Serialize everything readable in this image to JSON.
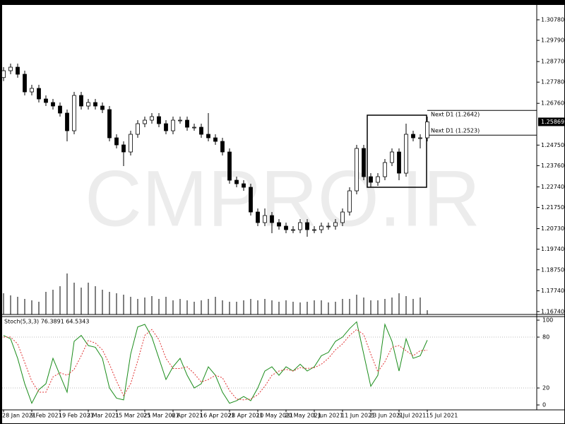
{
  "chart_data": {
    "type": "candlestick",
    "watermark": "CMPRO.IR",
    "categories": [
      "28 Jan 2021",
      null,
      null,
      null,
      "9 Feb 2021",
      null,
      null,
      null,
      "19 Feb 2021",
      null,
      null,
      null,
      "3 Mar 2021",
      null,
      null,
      null,
      "15 Mar 2021",
      null,
      null,
      null,
      "25 Mar 2021",
      null,
      null,
      null,
      "6 Apr 2021",
      null,
      null,
      null,
      "16 Apr 2021",
      null,
      null,
      null,
      "28 Apr 2021",
      null,
      null,
      null,
      "10 May 2021",
      null,
      null,
      null,
      "20 May 2021",
      null,
      null,
      null,
      "1 Jun 2021",
      null,
      null,
      null,
      "11 Jun 2021",
      null,
      null,
      null,
      "23 Jun 2021",
      null,
      null,
      null,
      "5 Jul 2021",
      null,
      null,
      null,
      "15 Jul 2021"
    ],
    "open": [
      1.28,
      1.2833,
      1.285,
      1.2816,
      1.2731,
      1.2748,
      1.2697,
      1.268,
      1.2663,
      1.2629,
      1.2544,
      1.2714,
      1.2663,
      1.268,
      1.2663,
      1.2646,
      1.251,
      1.2476,
      1.2442,
      1.2527,
      1.2578,
      1.2595,
      1.2612,
      1.2578,
      1.2544,
      1.2595,
      1.2595,
      1.2561,
      1.2561,
      1.2527,
      1.251,
      1.2493,
      1.2442,
      1.2306,
      1.2289,
      1.2272,
      1.2153,
      1.2102,
      1.2136,
      1.2102,
      1.2085,
      1.2068,
      1.2068,
      1.2102,
      1.2068,
      1.2068,
      1.2085,
      1.2085,
      1.2102,
      1.2153,
      1.2255,
      1.2459,
      1.2323,
      1.2296,
      1.2323,
      1.2391,
      1.2442,
      1.234,
      1.2527,
      1.251,
      1.251
    ],
    "high": [
      1.285,
      1.2867,
      1.2867,
      1.2833,
      1.2765,
      1.2765,
      1.2714,
      1.2697,
      1.268,
      1.2646,
      1.2731,
      1.2731,
      1.2697,
      1.2697,
      1.268,
      1.2663,
      1.2527,
      1.2493,
      1.2544,
      1.2595,
      1.2612,
      1.2629,
      1.2629,
      1.2595,
      1.2612,
      1.2612,
      1.2612,
      1.2578,
      1.2578,
      1.2629,
      1.2527,
      1.251,
      1.2459,
      1.2323,
      1.2306,
      1.2289,
      1.217,
      1.217,
      1.2153,
      1.2119,
      1.2102,
      1.2085,
      1.2119,
      1.2119,
      1.2085,
      1.2102,
      1.2102,
      1.2119,
      1.217,
      1.2272,
      1.2476,
      1.2476,
      1.234,
      1.234,
      1.2408,
      1.2459,
      1.2459,
      1.2578,
      1.2544,
      1.2527,
      1.2612
    ],
    "low": [
      1.2783,
      1.2816,
      1.2799,
      1.2714,
      1.2714,
      1.268,
      1.2663,
      1.2646,
      1.2612,
      1.2493,
      1.2527,
      1.2646,
      1.2646,
      1.2646,
      1.2629,
      1.2493,
      1.2459,
      1.2374,
      1.2425,
      1.251,
      1.2561,
      1.2578,
      1.2561,
      1.2527,
      1.2527,
      1.2578,
      1.2544,
      1.2544,
      1.251,
      1.2493,
      1.2476,
      1.2425,
      1.2289,
      1.2272,
      1.2255,
      1.2136,
      1.2085,
      1.2085,
      1.2051,
      1.2068,
      1.2051,
      1.2051,
      1.2051,
      1.2034,
      1.2051,
      1.2051,
      1.2068,
      1.2068,
      1.2085,
      1.2136,
      1.2238,
      1.2306,
      1.2272,
      1.2279,
      1.2306,
      1.2374,
      1.2306,
      1.2323,
      1.2493,
      1.2459,
      1.2493
    ],
    "close": [
      1.2833,
      1.285,
      1.2816,
      1.2731,
      1.2748,
      1.2697,
      1.268,
      1.2663,
      1.2629,
      1.2544,
      1.2714,
      1.2663,
      1.268,
      1.2663,
      1.2646,
      1.251,
      1.2476,
      1.2442,
      1.2527,
      1.2578,
      1.2595,
      1.2612,
      1.2578,
      1.2544,
      1.2595,
      1.2595,
      1.2561,
      1.2561,
      1.2527,
      1.251,
      1.2493,
      1.2442,
      1.2306,
      1.2289,
      1.2272,
      1.2153,
      1.2102,
      1.2136,
      1.2102,
      1.2085,
      1.2068,
      1.2068,
      1.2102,
      1.2068,
      1.2068,
      1.2085,
      1.2085,
      1.2102,
      1.2153,
      1.2255,
      1.2459,
      1.2323,
      1.2296,
      1.2323,
      1.2391,
      1.2442,
      1.234,
      1.2527,
      1.251,
      1.251,
      1.2587
    ],
    "up_color": "#ffffff",
    "down_color": "#000000",
    "ylim": [
      1.166,
      1.3146
    ],
    "yticks": [
      {
        "value": 1.3078,
        "label": "1.30780"
      },
      {
        "value": 1.2979,
        "label": "1.29790"
      },
      {
        "value": 1.2877,
        "label": "1.28770"
      },
      {
        "value": 1.2778,
        "label": "1.27780"
      },
      {
        "value": 1.2676,
        "label": "1.26760"
      },
      {
        "value": 1.2475,
        "label": "1.24750"
      },
      {
        "value": 1.2376,
        "label": "1.23760"
      },
      {
        "value": 1.2274,
        "label": "1.22740"
      },
      {
        "value": 1.2175,
        "label": "1.21750"
      },
      {
        "value": 1.2073,
        "label": "1.20730"
      },
      {
        "value": 1.1974,
        "label": "1.19740"
      },
      {
        "value": 1.1875,
        "label": "1.18750"
      },
      {
        "value": 1.1774,
        "label": "1.17740"
      },
      {
        "value": 1.1674,
        "label": "1.16740"
      }
    ],
    "last_price": 1.25869,
    "annotations": [
      {
        "label": "Next D1 (1.2642)",
        "value": 1.2642
      },
      {
        "label": "Next D1 (1.2523)",
        "value": 1.2523
      }
    ],
    "volume": {
      "color": "#000000",
      "values": [
        30,
        27,
        25,
        22,
        20,
        18,
        32,
        35,
        40,
        58,
        45,
        38,
        45,
        40,
        35,
        32,
        30,
        28,
        25,
        22,
        24,
        26,
        22,
        25,
        20,
        22,
        20,
        18,
        20,
        22,
        25,
        20,
        18,
        18,
        20,
        22,
        20,
        22,
        20,
        18,
        20,
        18,
        17,
        18,
        20,
        20,
        17,
        18,
        22,
        22,
        28,
        24,
        20,
        20,
        22,
        24,
        30,
        26,
        22,
        24,
        6
      ]
    },
    "stochastic": {
      "title": "Stoch(5,3,3) 76.3891 64.5343",
      "ylim": [
        -5.8,
        104.2
      ],
      "yticks": [
        100,
        80,
        20,
        0
      ],
      "levels": [
        80,
        20
      ],
      "series": [
        {
          "color": "#1a8c1a",
          "values": [
            82,
            78,
            55,
            25,
            2,
            18,
            25,
            55,
            35,
            15,
            75,
            82,
            70,
            68,
            55,
            20,
            8,
            6,
            60,
            92,
            95,
            80,
            55,
            30,
            45,
            55,
            35,
            20,
            25,
            45,
            35,
            15,
            2,
            5,
            10,
            5,
            20,
            40,
            45,
            35,
            45,
            40,
            48,
            40,
            45,
            58,
            62,
            75,
            80,
            90,
            98,
            60,
            22,
            35,
            95,
            75,
            40,
            78,
            55,
            58,
            76.3891
          ]
        },
        {
          "color": "#e03030",
          "dashed": true,
          "values": [
            80,
            80,
            72,
            50,
            28,
            15,
            15,
            33,
            38,
            35,
            42,
            58,
            76,
            73,
            65,
            48,
            28,
            11,
            25,
            52,
            82,
            89,
            77,
            55,
            43,
            43,
            45,
            37,
            27,
            30,
            35,
            32,
            17,
            7,
            6,
            7,
            12,
            22,
            35,
            40,
            42,
            40,
            44,
            43,
            44,
            48,
            55,
            65,
            72,
            82,
            89,
            83,
            60,
            39,
            51,
            68,
            70,
            64,
            58,
            64,
            64.5343
          ]
        }
      ]
    }
  }
}
